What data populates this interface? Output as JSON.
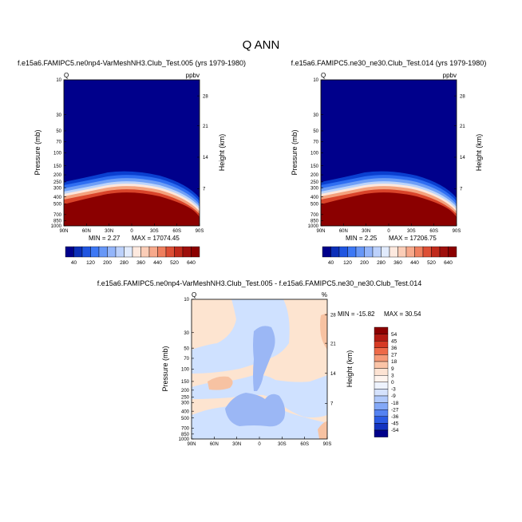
{
  "page_title": "Q ANN",
  "chart_data": [
    {
      "type": "heatmap",
      "id": "top-left",
      "title": "f.e15a6.FAMIPC5.ne0np4-VarMeshNH3.Club_Test.005 (yrs 1979-1980)",
      "variable": "Q",
      "units": "ppbv",
      "ylabel": "Pressure (mb)",
      "ylabel_right": "Height (km)",
      "x_ticks": [
        "90N",
        "60N",
        "30N",
        "0",
        "30S",
        "60S",
        "90S"
      ],
      "y_ticks": [
        "10",
        "30",
        "50",
        "70",
        "100",
        "150",
        "200",
        "250",
        "300",
        "400",
        "500",
        "700",
        "850",
        "1000"
      ],
      "y_ticks_right": [
        "28",
        "21",
        "14",
        "7"
      ],
      "min_label": "MIN =   2.27",
      "max_label": "MAX = 17074.45",
      "legend_levels": [
        "40",
        "120",
        "200",
        "280",
        "360",
        "440",
        "520",
        "640"
      ]
    },
    {
      "type": "heatmap",
      "id": "top-right",
      "title": "f.e15a6.FAMIPC5.ne30_ne30.Club_Test.014 (yrs 1979-1980)",
      "variable": "Q",
      "units": "ppbv",
      "ylabel": "Pressure (mb)",
      "ylabel_right": "Height (km)",
      "x_ticks": [
        "90N",
        "60N",
        "30N",
        "0",
        "30S",
        "60S",
        "90S"
      ],
      "y_ticks": [
        "10",
        "30",
        "50",
        "70",
        "100",
        "150",
        "200",
        "250",
        "300",
        "400",
        "500",
        "700",
        "850",
        "1000"
      ],
      "y_ticks_right": [
        "28",
        "21",
        "14",
        "7"
      ],
      "min_label": "MIN =   2.25",
      "max_label": "MAX = 17206.75",
      "legend_levels": [
        "40",
        "120",
        "200",
        "280",
        "360",
        "440",
        "520",
        "640"
      ]
    },
    {
      "type": "heatmap",
      "id": "difference",
      "title": "f.e15a6.FAMIPC5.ne0np4-VarMeshNH3.Club_Test.005 - f.e15a6.FAMIPC5.ne30_ne30.Club_Test.014",
      "variable": "Q",
      "units": "%",
      "ylabel": "Pressure (mb)",
      "ylabel_right": "Height (km)",
      "x_ticks": [
        "90N",
        "60N",
        "30N",
        "0",
        "30S",
        "60S",
        "90S"
      ],
      "y_ticks": [
        "10",
        "30",
        "50",
        "70",
        "100",
        "150",
        "200",
        "250",
        "300",
        "400",
        "500",
        "700",
        "850",
        "1000"
      ],
      "y_ticks_right": [
        "28",
        "21",
        "14",
        "7"
      ],
      "min_label": "MIN = -15.82",
      "max_label": "MAX =  30.54",
      "legend_levels": [
        "54",
        "45",
        "36",
        "27",
        "18",
        "9",
        "3",
        "0",
        "-3",
        "-9",
        "-18",
        "-27",
        "-36",
        "-45",
        "-54"
      ]
    }
  ],
  "colors": {
    "dark_navy": "#00008b",
    "dark_red": "#8b0000",
    "pale_blue": "#cfe1ff",
    "pale_peach": "#fde4d0"
  }
}
